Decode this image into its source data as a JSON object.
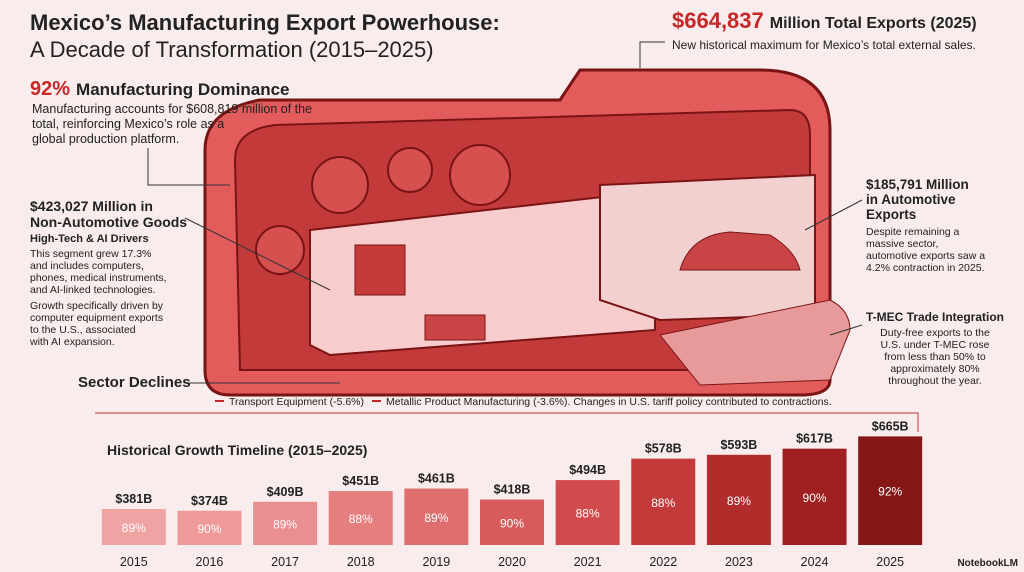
{
  "header": {
    "title_lines": [
      "Mexico’s Manufacturing Export Powerhouse:",
      "A Decade of Transformation (2015–2025)"
    ]
  },
  "total": {
    "value": "$664,837",
    "label": "Million Total Exports (2025)",
    "text": "New historical maximum for Mexico’s total external sales."
  },
  "dominance": {
    "value": "92%",
    "label": "Manufacturing Dominance",
    "text_lines": [
      "Manufacturing accounts for $608,819 million of the",
      "total, reinforcing Mexico’s role as a",
      "global production platform."
    ]
  },
  "non_automotive": {
    "title_lines": [
      "$423,027 Million in",
      "Non-Automotive Goods"
    ],
    "subtitle": "High-Tech & AI Drivers",
    "text_lines": [
      "This segment grew 17.3%",
      "and includes computers,",
      "phones, medical instruments,",
      "and AI-linked technologies."
    ],
    "text2_lines": [
      "Growth specifically driven by",
      "computer equipment exports",
      "to the U.S., associated",
      "with AI expansion."
    ]
  },
  "automotive": {
    "title_lines": [
      "$185,791 Million",
      "in Automotive",
      "Exports"
    ],
    "text_lines": [
      "Despite remaining a",
      "massive sector,",
      "automotive exports saw a",
      "4.2% contraction in 2025."
    ]
  },
  "tmec": {
    "title": "T-MEC Trade Integration",
    "text_lines": [
      "Duty-free exports to the",
      "U.S. under T-MEC rose",
      "from less than 50% to",
      "approximately 80%",
      "throughout the year."
    ]
  },
  "declines": {
    "title": "Sector Declines",
    "items": [
      "Transport Equipment (-5.6%)",
      "Metallic Product Manufacturing (-3.6%). Changes in U.S. tariff policy contributed to contractions."
    ]
  },
  "branding": "NotebookLM",
  "chart_data": {
    "type": "bar",
    "title": "Historical Growth Timeline (2015–2025)",
    "categories": [
      "2015",
      "2016",
      "2017",
      "2018",
      "2019",
      "2020",
      "2021",
      "2022",
      "2023",
      "2024",
      "2025"
    ],
    "values": [
      381,
      374,
      409,
      451,
      461,
      418,
      494,
      578,
      593,
      617,
      665
    ],
    "value_labels": [
      "$381B",
      "$374B",
      "$409B",
      "$451B",
      "$461B",
      "$418B",
      "$494B",
      "$578B",
      "$593B",
      "$617B",
      "$665B"
    ],
    "colors": [
      "#f0a3a3",
      "#ee9a9a",
      "#ea8f8f",
      "#e57e7e",
      "#df6e6e",
      "#d95c5c",
      "#d04b4b",
      "#c43a3a",
      "#b32c2c",
      "#9f2020",
      "#861717"
    ],
    "share": {
      "values": [
        89,
        90,
        89,
        88,
        89,
        90,
        88,
        88,
        89,
        90,
        92
      ],
      "value_labels": [
        "89%",
        "90%",
        "89%",
        "88%",
        "89%",
        "90%",
        "88%",
        "88%",
        "89%",
        "90%",
        "92%"
      ]
    },
    "ylim": [
      240,
      690
    ]
  }
}
